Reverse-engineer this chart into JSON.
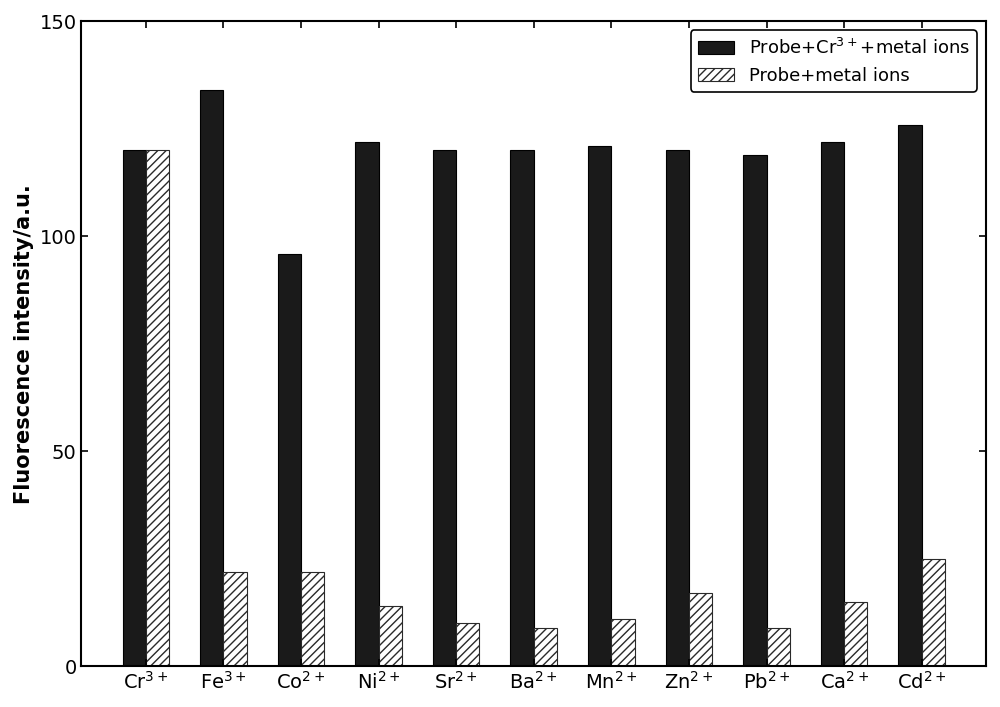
{
  "categories": [
    "Cr",
    "Fe",
    "Co",
    "Ni",
    "Sr",
    "Ba",
    "Mn",
    "Zn",
    "Pb",
    "Ca",
    "Cd"
  ],
  "superscripts": [
    "3+",
    "3+",
    "2+",
    "2+",
    "2+",
    "2+",
    "2+",
    "2+",
    "2+",
    "2+",
    "2+"
  ],
  "probe_cr_metal": [
    120,
    134,
    96,
    122,
    120,
    120,
    121,
    120,
    119,
    122,
    126
  ],
  "probe_metal": [
    120,
    22,
    22,
    14,
    10,
    9,
    11,
    17,
    9,
    15,
    25
  ],
  "bar_color_solid": "#1a1a1a",
  "bar_color_hatch": "#ffffff",
  "hatch_pattern": "////",
  "hatch_edgecolor": "#2a2a2a",
  "ylabel": "Fluorescence intensity/a.u.",
  "ylim": [
    0,
    150
  ],
  "yticks": [
    0,
    50,
    100,
    150
  ],
  "legend_label1": "Probe+Cr$^{3+}$+metal ions",
  "legend_label2": "Probe+metal ions",
  "background_color": "#ffffff",
  "label_fontsize": 15,
  "tick_fontsize": 14,
  "legend_fontsize": 13
}
